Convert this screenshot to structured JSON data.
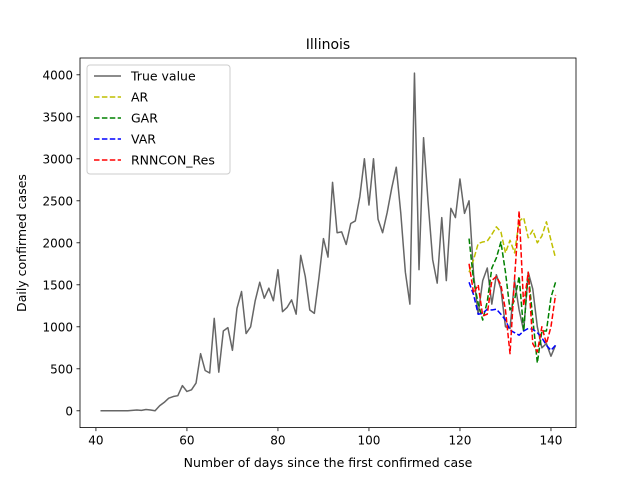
{
  "chart_data": {
    "type": "line",
    "title": "Illinois",
    "xlabel": "Number of days since the first confirmed case",
    "ylabel": "Daily confirmed cases",
    "xlim": [
      36.5,
      145.5
    ],
    "ylim": [
      -200,
      4200
    ],
    "xticks": [
      40,
      60,
      80,
      100,
      120,
      140
    ],
    "yticks": [
      0,
      500,
      1000,
      1500,
      2000,
      2500,
      3000,
      3500,
      4000
    ],
    "grid": false,
    "legend_position": "top-left",
    "series": [
      {
        "name": "True value",
        "color": "#666666",
        "dash": "solid",
        "x": [
          41,
          42,
          43,
          44,
          45,
          46,
          47,
          48,
          49,
          50,
          51,
          52,
          53,
          54,
          55,
          56,
          57,
          58,
          59,
          60,
          61,
          62,
          63,
          64,
          65,
          66,
          67,
          68,
          69,
          70,
          71,
          72,
          73,
          74,
          75,
          76,
          77,
          78,
          79,
          80,
          81,
          82,
          83,
          84,
          85,
          86,
          87,
          88,
          89,
          90,
          91,
          92,
          93,
          94,
          95,
          96,
          97,
          98,
          99,
          100,
          101,
          102,
          103,
          104,
          105,
          106,
          107,
          108,
          109,
          110,
          111,
          112,
          113,
          114,
          115,
          116,
          117,
          118,
          119,
          120,
          121,
          122,
          123,
          124,
          125,
          126,
          127,
          128,
          129,
          130,
          131,
          132,
          133,
          134,
          135,
          136,
          137,
          138,
          139,
          140,
          141
        ],
        "y": [
          0,
          0,
          0,
          0,
          0,
          0,
          0,
          5,
          10,
          5,
          15,
          10,
          0,
          60,
          100,
          150,
          170,
          180,
          300,
          230,
          250,
          330,
          680,
          480,
          450,
          1100,
          460,
          950,
          990,
          720,
          1220,
          1420,
          920,
          1000,
          1310,
          1530,
          1340,
          1460,
          1310,
          1680,
          1180,
          1230,
          1320,
          1150,
          1850,
          1600,
          1200,
          1160,
          1580,
          2050,
          1830,
          2720,
          2120,
          2130,
          1980,
          2230,
          2260,
          2550,
          3000,
          2450,
          3000,
          2280,
          2120,
          2360,
          2650,
          2900,
          2350,
          1650,
          1270,
          4020,
          1680,
          3250,
          2480,
          1800,
          1520,
          2300,
          1550,
          2410,
          2300,
          2760,
          2350,
          2500,
          1620,
          1150,
          1550,
          1700,
          1270,
          1620,
          1450,
          1000,
          980,
          1550,
          1200,
          950,
          1650,
          1450,
          1000,
          750,
          800,
          650,
          780
        ]
      },
      {
        "name": "AR",
        "color": "#bfbf00",
        "dash": "dashed",
        "x": [
          122,
          123,
          124,
          125,
          126,
          127,
          128,
          129,
          130,
          131,
          132,
          133,
          134,
          135,
          136,
          137,
          138,
          139,
          140,
          141
        ],
        "y": [
          1650,
          1800,
          1990,
          2010,
          2020,
          2100,
          2190,
          2130,
          1880,
          2030,
          1880,
          2260,
          2300,
          2060,
          2150,
          2000,
          2080,
          2250,
          2030,
          1820
        ]
      },
      {
        "name": "GAR",
        "color": "#008000",
        "dash": "dashed",
        "x": [
          122,
          123,
          124,
          125,
          126,
          127,
          128,
          129,
          130,
          131,
          132,
          133,
          134,
          135,
          136,
          137,
          138,
          139,
          140,
          141
        ],
        "y": [
          2050,
          1550,
          1280,
          1080,
          1300,
          1700,
          1820,
          2010,
          1650,
          1200,
          1320,
          1600,
          950,
          1650,
          1100,
          570,
          950,
          950,
          1350,
          1530
        ]
      },
      {
        "name": "VAR",
        "color": "#0000ff",
        "dash": "dashed",
        "x": [
          122,
          123,
          124,
          125,
          126,
          127,
          128,
          129,
          130,
          131,
          132,
          133,
          134,
          135,
          136,
          137,
          138,
          139,
          140,
          141
        ],
        "y": [
          1530,
          1380,
          1150,
          1160,
          1210,
          1200,
          1210,
          1150,
          1080,
          960,
          930,
          900,
          950,
          980,
          970,
          930,
          870,
          780,
          720,
          780
        ]
      },
      {
        "name": "RNNCON_Res",
        "color": "#ff0000",
        "dash": "dashed",
        "x": [
          122,
          123,
          124,
          125,
          126,
          127,
          128,
          129,
          130,
          131,
          132,
          133,
          134,
          135,
          136,
          137,
          138,
          139,
          140,
          141
        ],
        "y": [
          1750,
          1400,
          1500,
          1130,
          1150,
          1550,
          1600,
          1500,
          1200,
          680,
          1580,
          2380,
          1250,
          1650,
          800,
          700,
          1000,
          800,
          1000,
          1380
        ]
      }
    ]
  }
}
